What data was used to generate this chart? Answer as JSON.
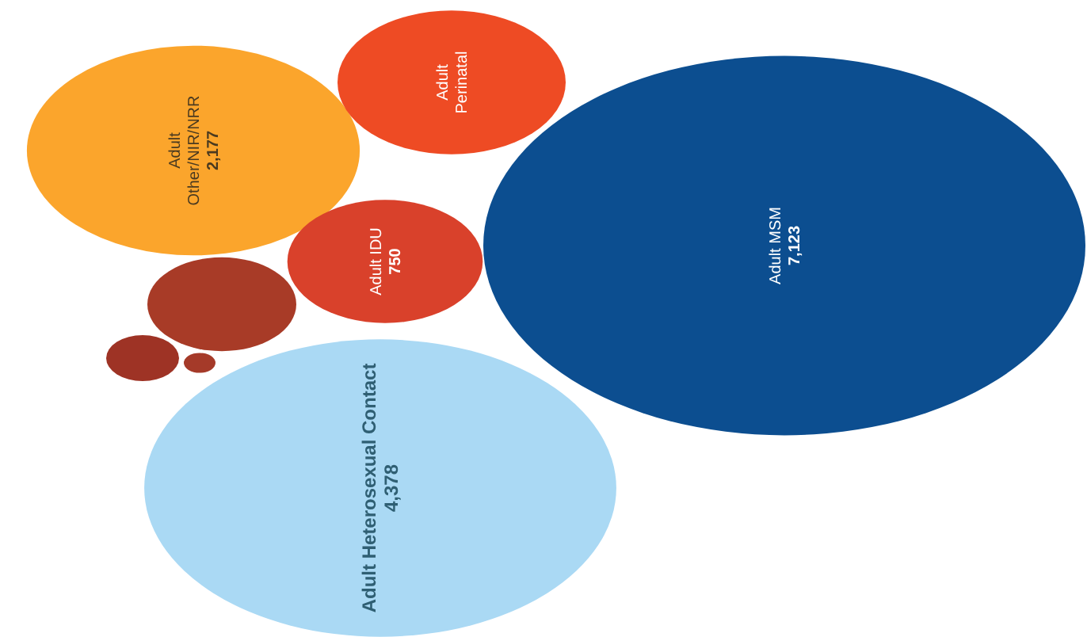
{
  "chart_data": {
    "type": "other",
    "categories": [
      "Adult\nOther/NIR/NRR",
      "Adult\nPerinatal",
      "Adult IDU",
      "Adult MSM",
      "Adult Heterosexual Contact",
      null,
      null,
      null
    ],
    "values": [
      2177,
      null,
      750,
      7123,
      4378,
      null,
      null,
      null
    ],
    "value_labels": [
      "2,177",
      null,
      "750",
      "7,123",
      "4,378",
      null,
      null,
      null
    ],
    "colors": [
      "#fba52c",
      "#ee4b24",
      "#d9412b",
      "#0c4e90",
      "#aad9f4",
      "#a83b27",
      "#9e3325",
      "#a53a29"
    ]
  }
}
